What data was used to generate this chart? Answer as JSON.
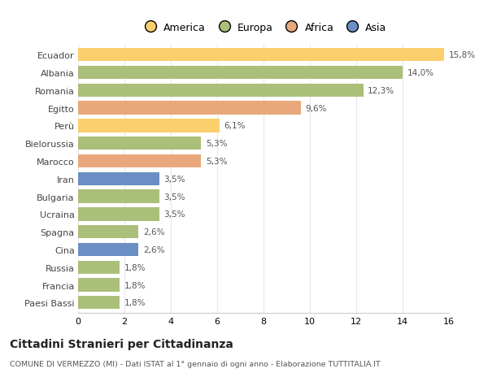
{
  "countries": [
    "Ecuador",
    "Albania",
    "Romania",
    "Egitto",
    "Perù",
    "Bielorussia",
    "Marocco",
    "Iran",
    "Bulgaria",
    "Ucraina",
    "Spagna",
    "Cina",
    "Russia",
    "Francia",
    "Paesi Bassi"
  ],
  "values": [
    15.8,
    14.0,
    12.3,
    9.6,
    6.1,
    5.3,
    5.3,
    3.5,
    3.5,
    3.5,
    2.6,
    2.6,
    1.8,
    1.8,
    1.8
  ],
  "colors": [
    "#FBCF6B",
    "#AABF7A",
    "#AABF7A",
    "#E8A87C",
    "#FBCF6B",
    "#AABF7A",
    "#E8A87C",
    "#6B8EC4",
    "#AABF7A",
    "#AABF7A",
    "#AABF7A",
    "#6B8EC4",
    "#AABF7A",
    "#AABF7A",
    "#AABF7A"
  ],
  "label_values": [
    "15,8%",
    "14,0%",
    "12,3%",
    "9,6%",
    "6,1%",
    "5,3%",
    "5,3%",
    "3,5%",
    "3,5%",
    "3,5%",
    "2,6%",
    "2,6%",
    "1,8%",
    "1,8%",
    "1,8%"
  ],
  "xlim": [
    0,
    16
  ],
  "xticks": [
    0,
    2,
    4,
    6,
    8,
    10,
    12,
    14,
    16
  ],
  "title": "Cittadini Stranieri per Cittadinanza",
  "subtitle": "COMUNE DI VERMEZZO (MI) - Dati ISTAT al 1° gennaio di ogni anno - Elaborazione TUTTITALIA.IT",
  "legend_labels": [
    "America",
    "Europa",
    "Africa",
    "Asia"
  ],
  "legend_colors": [
    "#FBCF6B",
    "#AABF7A",
    "#E8A87C",
    "#6B8EC4"
  ],
  "bg_color": "#FFFFFF",
  "plot_bg_color": "#FFFFFF",
  "grid_color": "#E8E8E8",
  "text_color": "#555555",
  "title_color": "#222222",
  "bar_height": 0.75
}
